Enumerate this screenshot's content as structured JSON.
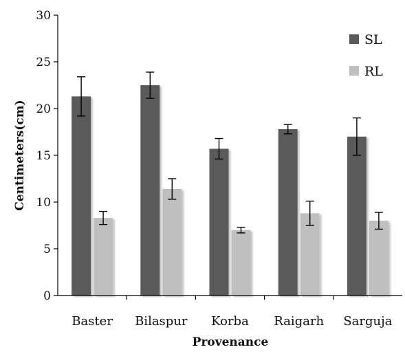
{
  "chart_data": {
    "type": "bar",
    "title": "",
    "xlabel": "Provenance",
    "ylabel": "Centimeters(cm)",
    "ylim": [
      0,
      30
    ],
    "yticks": [
      0,
      5,
      10,
      15,
      20,
      25,
      30
    ],
    "grid": false,
    "legend_position": "top-right",
    "categories": [
      "Baster",
      "Bilaspur",
      "Korba",
      "Raigarh",
      "Sarguja"
    ],
    "series": [
      {
        "name": "SL",
        "color": "#5a5a5a",
        "values": [
          21.3,
          22.5,
          15.7,
          17.8,
          17.0
        ],
        "errors": [
          2.1,
          1.4,
          1.1,
          0.5,
          2.0
        ]
      },
      {
        "name": "RL",
        "color": "#bfbfbf",
        "values": [
          8.3,
          11.4,
          7.0,
          8.8,
          8.0
        ],
        "errors": [
          0.7,
          1.1,
          0.3,
          1.3,
          0.9
        ]
      }
    ]
  }
}
